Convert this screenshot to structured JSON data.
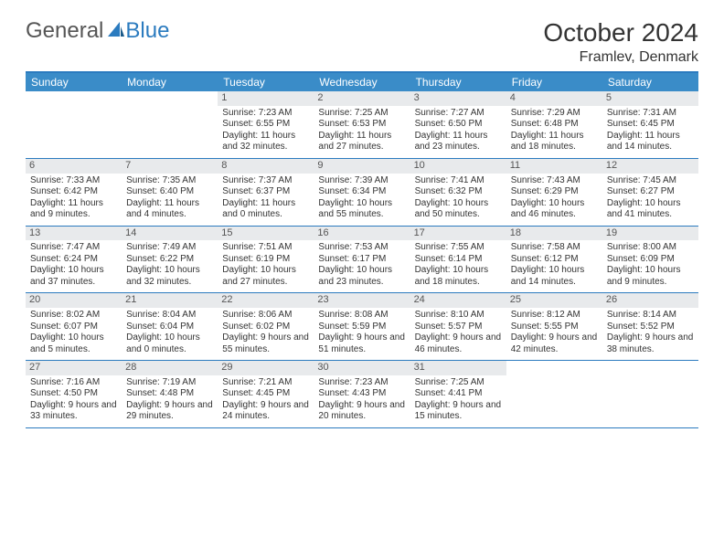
{
  "logo": {
    "text1": "General",
    "text2": "Blue"
  },
  "title": "October 2024",
  "location": "Framlev, Denmark",
  "colors": {
    "headerBg": "#3a8cc8",
    "borderTop": "#2b7bbf",
    "dayNumBg": "#e8eaec",
    "text": "#333333"
  },
  "weekdays": [
    "Sunday",
    "Monday",
    "Tuesday",
    "Wednesday",
    "Thursday",
    "Friday",
    "Saturday"
  ],
  "weeks": [
    [
      null,
      null,
      {
        "n": "1",
        "sr": "7:23 AM",
        "ss": "6:55 PM",
        "dl": "11 hours and 32 minutes."
      },
      {
        "n": "2",
        "sr": "7:25 AM",
        "ss": "6:53 PM",
        "dl": "11 hours and 27 minutes."
      },
      {
        "n": "3",
        "sr": "7:27 AM",
        "ss": "6:50 PM",
        "dl": "11 hours and 23 minutes."
      },
      {
        "n": "4",
        "sr": "7:29 AM",
        "ss": "6:48 PM",
        "dl": "11 hours and 18 minutes."
      },
      {
        "n": "5",
        "sr": "7:31 AM",
        "ss": "6:45 PM",
        "dl": "11 hours and 14 minutes."
      }
    ],
    [
      {
        "n": "6",
        "sr": "7:33 AM",
        "ss": "6:42 PM",
        "dl": "11 hours and 9 minutes."
      },
      {
        "n": "7",
        "sr": "7:35 AM",
        "ss": "6:40 PM",
        "dl": "11 hours and 4 minutes."
      },
      {
        "n": "8",
        "sr": "7:37 AM",
        "ss": "6:37 PM",
        "dl": "11 hours and 0 minutes."
      },
      {
        "n": "9",
        "sr": "7:39 AM",
        "ss": "6:34 PM",
        "dl": "10 hours and 55 minutes."
      },
      {
        "n": "10",
        "sr": "7:41 AM",
        "ss": "6:32 PM",
        "dl": "10 hours and 50 minutes."
      },
      {
        "n": "11",
        "sr": "7:43 AM",
        "ss": "6:29 PM",
        "dl": "10 hours and 46 minutes."
      },
      {
        "n": "12",
        "sr": "7:45 AM",
        "ss": "6:27 PM",
        "dl": "10 hours and 41 minutes."
      }
    ],
    [
      {
        "n": "13",
        "sr": "7:47 AM",
        "ss": "6:24 PM",
        "dl": "10 hours and 37 minutes."
      },
      {
        "n": "14",
        "sr": "7:49 AM",
        "ss": "6:22 PM",
        "dl": "10 hours and 32 minutes."
      },
      {
        "n": "15",
        "sr": "7:51 AM",
        "ss": "6:19 PM",
        "dl": "10 hours and 27 minutes."
      },
      {
        "n": "16",
        "sr": "7:53 AM",
        "ss": "6:17 PM",
        "dl": "10 hours and 23 minutes."
      },
      {
        "n": "17",
        "sr": "7:55 AM",
        "ss": "6:14 PM",
        "dl": "10 hours and 18 minutes."
      },
      {
        "n": "18",
        "sr": "7:58 AM",
        "ss": "6:12 PM",
        "dl": "10 hours and 14 minutes."
      },
      {
        "n": "19",
        "sr": "8:00 AM",
        "ss": "6:09 PM",
        "dl": "10 hours and 9 minutes."
      }
    ],
    [
      {
        "n": "20",
        "sr": "8:02 AM",
        "ss": "6:07 PM",
        "dl": "10 hours and 5 minutes."
      },
      {
        "n": "21",
        "sr": "8:04 AM",
        "ss": "6:04 PM",
        "dl": "10 hours and 0 minutes."
      },
      {
        "n": "22",
        "sr": "8:06 AM",
        "ss": "6:02 PM",
        "dl": "9 hours and 55 minutes."
      },
      {
        "n": "23",
        "sr": "8:08 AM",
        "ss": "5:59 PM",
        "dl": "9 hours and 51 minutes."
      },
      {
        "n": "24",
        "sr": "8:10 AM",
        "ss": "5:57 PM",
        "dl": "9 hours and 46 minutes."
      },
      {
        "n": "25",
        "sr": "8:12 AM",
        "ss": "5:55 PM",
        "dl": "9 hours and 42 minutes."
      },
      {
        "n": "26",
        "sr": "8:14 AM",
        "ss": "5:52 PM",
        "dl": "9 hours and 38 minutes."
      }
    ],
    [
      {
        "n": "27",
        "sr": "7:16 AM",
        "ss": "4:50 PM",
        "dl": "9 hours and 33 minutes."
      },
      {
        "n": "28",
        "sr": "7:19 AM",
        "ss": "4:48 PM",
        "dl": "9 hours and 29 minutes."
      },
      {
        "n": "29",
        "sr": "7:21 AM",
        "ss": "4:45 PM",
        "dl": "9 hours and 24 minutes."
      },
      {
        "n": "30",
        "sr": "7:23 AM",
        "ss": "4:43 PM",
        "dl": "9 hours and 20 minutes."
      },
      {
        "n": "31",
        "sr": "7:25 AM",
        "ss": "4:41 PM",
        "dl": "9 hours and 15 minutes."
      },
      null,
      null
    ]
  ],
  "labels": {
    "sunrise": "Sunrise:",
    "sunset": "Sunset:",
    "daylight": "Daylight:"
  }
}
